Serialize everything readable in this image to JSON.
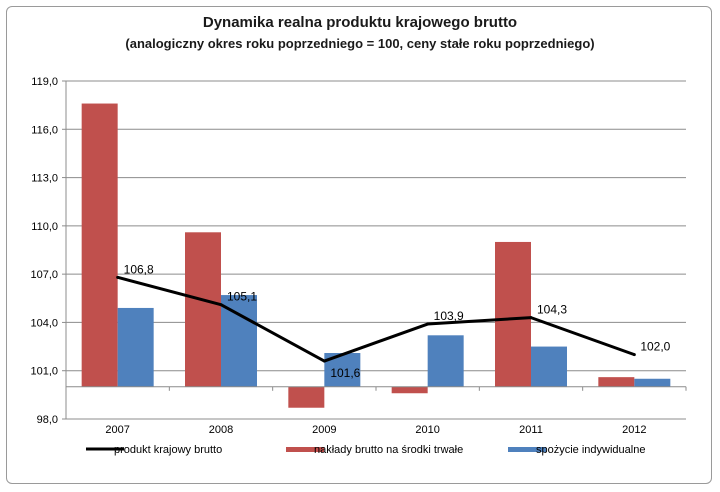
{
  "chart_data": {
    "type": "bar",
    "title": "Dynamika realna produktu krajowego brutto",
    "subtitle": "(analogiczny okres roku poprzedniego = 100, ceny stałe roku poprzedniego)",
    "categories": [
      "2007",
      "2008",
      "2009",
      "2010",
      "2011",
      "2012"
    ],
    "ylim": [
      98.0,
      119.0
    ],
    "baseline": 100.0,
    "yticks": [
      98.0,
      101.0,
      104.0,
      107.0,
      110.0,
      113.0,
      116.0,
      119.0
    ],
    "ytick_labels": [
      "98,0",
      "101,0",
      "104,0",
      "107,0",
      "110,0",
      "113,0",
      "116,0",
      "119,0"
    ],
    "grid": true,
    "legend_position": "bottom",
    "series": [
      {
        "name": "produkt krajowy brutto",
        "kind": "line",
        "color": "#000000",
        "values": [
          106.8,
          105.1,
          101.6,
          103.9,
          104.3,
          102.0
        ],
        "labels": [
          "106,8",
          "105,1",
          "101,6",
          "103,9",
          "104,3",
          "102,0"
        ]
      },
      {
        "name": "nakłady brutto na środki trwałe",
        "kind": "bar",
        "color": "#c0504d",
        "values": [
          117.6,
          109.6,
          98.7,
          99.6,
          109.0,
          100.6
        ]
      },
      {
        "name": "spożycie indywidualne",
        "kind": "bar",
        "color": "#4f81bd",
        "values": [
          104.9,
          105.7,
          102.1,
          103.2,
          102.5,
          100.5
        ]
      }
    ]
  }
}
